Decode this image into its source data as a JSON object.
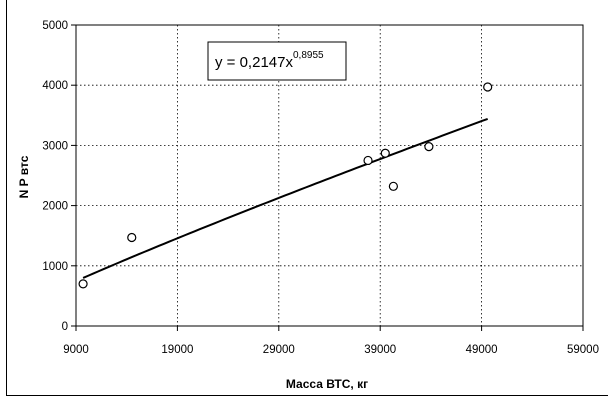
{
  "chart_data": {
    "type": "scatter",
    "xlabel": "Масса ВТС, кг",
    "ylabel": "N P втс",
    "xlim": [
      9000,
      59000
    ],
    "ylim": [
      0,
      5000
    ],
    "x_ticks": [
      9000,
      19000,
      29000,
      39000,
      49000,
      59000
    ],
    "y_ticks": [
      0,
      1000,
      2000,
      3000,
      4000,
      5000
    ],
    "grid": true,
    "points": [
      {
        "x": 9700,
        "y": 700
      },
      {
        "x": 14500,
        "y": 1470
      },
      {
        "x": 37800,
        "y": 2750
      },
      {
        "x": 39500,
        "y": 2870
      },
      {
        "x": 40300,
        "y": 2320
      },
      {
        "x": 43800,
        "y": 2980
      },
      {
        "x": 49600,
        "y": 3970
      }
    ],
    "trendline": {
      "type": "power",
      "coefficient": 0.2147,
      "exponent": 0.8955,
      "x_range": [
        9700,
        49600
      ],
      "equation_base": "y = 0,2147x",
      "equation_exponent": "0,8955"
    },
    "colors": {
      "marker_stroke": "#000000",
      "marker_fill": "#ffffff",
      "trendline": "#000000",
      "gridline": "#000000"
    }
  }
}
